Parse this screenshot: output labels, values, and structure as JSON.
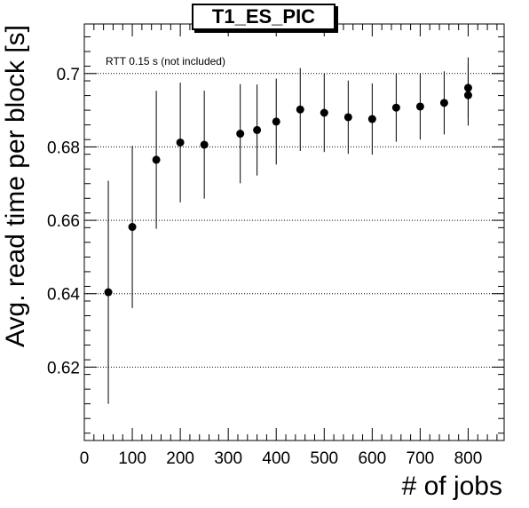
{
  "chart_data": {
    "type": "scatter",
    "title": "T1_ES_PIC",
    "annotation": "RTT 0.15 s (not included)",
    "xlabel": "# of jobs",
    "ylabel": "Avg. read time per block [s]",
    "xlim": [
      0,
      875
    ],
    "ylim": [
      0.6,
      0.7135
    ],
    "x_ticks": [
      0,
      100,
      200,
      300,
      400,
      500,
      600,
      700,
      800
    ],
    "y_ticks": [
      0.62,
      0.64,
      0.66,
      0.68,
      0.7
    ],
    "y_tick_labels": [
      "0.62",
      "0.64",
      "0.66",
      "0.68",
      "0.7"
    ],
    "grid": "horizontal dotted",
    "legend": "none",
    "series": [
      {
        "marker_color": "#000000",
        "points": [
          {
            "x": 50,
            "y": 0.6404,
            "err": 0.0304
          },
          {
            "x": 100,
            "y": 0.6582,
            "err": 0.0221
          },
          {
            "x": 150,
            "y": 0.6765,
            "err": 0.0188
          },
          {
            "x": 200,
            "y": 0.6812,
            "err": 0.0163
          },
          {
            "x": 250,
            "y": 0.6806,
            "err": 0.0147
          },
          {
            "x": 325,
            "y": 0.6836,
            "err": 0.0135
          },
          {
            "x": 360,
            "y": 0.6846,
            "err": 0.0124
          },
          {
            "x": 400,
            "y": 0.6869,
            "err": 0.0117
          },
          {
            "x": 450,
            "y": 0.6902,
            "err": 0.0113
          },
          {
            "x": 500,
            "y": 0.6893,
            "err": 0.0107
          },
          {
            "x": 550,
            "y": 0.6881,
            "err": 0.01
          },
          {
            "x": 600,
            "y": 0.6876,
            "err": 0.0097
          },
          {
            "x": 650,
            "y": 0.6907,
            "err": 0.0093
          },
          {
            "x": 700,
            "y": 0.691,
            "err": 0.009
          },
          {
            "x": 750,
            "y": 0.692,
            "err": 0.0086
          },
          {
            "x": 800,
            "y": 0.6941,
            "err": 0.0083
          },
          {
            "x": 800,
            "y": 0.6961,
            "err": 0.0083
          }
        ]
      }
    ]
  }
}
